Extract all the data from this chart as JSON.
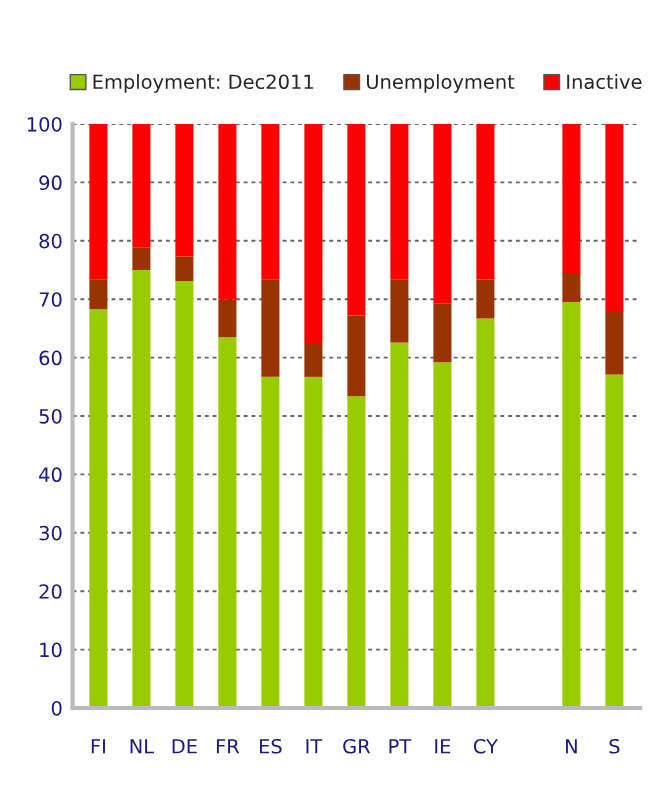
{
  "chart_data": {
    "type": "bar",
    "stacked": true,
    "categories": [
      "FI",
      "NL",
      "DE",
      "FR",
      "ES",
      "IT",
      "GR",
      "PT",
      "IE",
      "CY",
      null,
      "N",
      "S"
    ],
    "series": [
      {
        "name": "Employment: Dec2011",
        "color": "#99cc00",
        "values": [
          68.3,
          75.0,
          73.1,
          63.5,
          56.7,
          56.7,
          53.4,
          62.6,
          59.2,
          66.7,
          null,
          69.5,
          57.1
        ]
      },
      {
        "name": "Unemployment",
        "color": "#993300",
        "values": [
          5.1,
          3.9,
          4.2,
          6.4,
          16.7,
          5.8,
          13.8,
          10.8,
          10.1,
          6.7,
          null,
          5.0,
          10.9
        ]
      },
      {
        "name": "Inactive",
        "color": "#ff0000",
        "values": [
          26.6,
          21.1,
          22.7,
          30.1,
          26.6,
          37.5,
          32.8,
          26.6,
          30.7,
          26.6,
          null,
          25.5,
          32.0
        ]
      }
    ],
    "ylim": [
      0,
      100
    ],
    "yticks": [
      0,
      10,
      20,
      30,
      40,
      50,
      60,
      70,
      80,
      90,
      100
    ],
    "grid": "y",
    "legend": "top"
  }
}
